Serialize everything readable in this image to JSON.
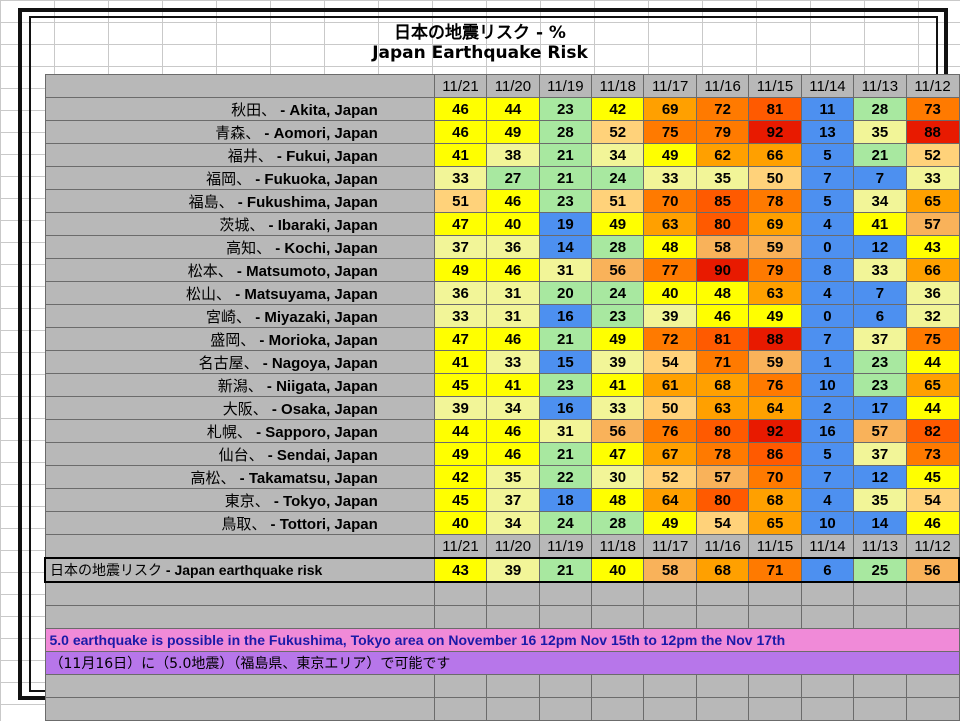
{
  "title_jp": "日本の地震リスク - %",
  "title_en": "Japan Earthquake Risk",
  "dates": [
    "11/21",
    "11/20",
    "11/19",
    "11/18",
    "11/17",
    "11/16",
    "11/15",
    "11/14",
    "11/13",
    "11/12"
  ],
  "rows": [
    {
      "jp": "秋田、",
      "en": " - Akita, Japan",
      "values": [
        46,
        44,
        23,
        42,
        69,
        72,
        81,
        11,
        28,
        73
      ]
    },
    {
      "jp": "青森、",
      "en": " - Aomori, Japan",
      "values": [
        46,
        49,
        28,
        52,
        75,
        79,
        92,
        13,
        35,
        88
      ]
    },
    {
      "jp": "福井、",
      "en": " - Fukui, Japan",
      "values": [
        41,
        38,
        21,
        34,
        49,
        62,
        66,
        5,
        21,
        52
      ]
    },
    {
      "jp": "福岡、",
      "en": " - Fukuoka, Japan",
      "values": [
        33,
        27,
        21,
        24,
        33,
        35,
        50,
        7,
        7,
        33
      ]
    },
    {
      "jp": "福島、",
      "en": " - Fukushima, Japan",
      "values": [
        51,
        46,
        23,
        51,
        70,
        85,
        78,
        5,
        34,
        65
      ]
    },
    {
      "jp": "茨城、",
      "en": " - Ibaraki, Japan",
      "values": [
        47,
        40,
        19,
        49,
        63,
        80,
        69,
        4,
        41,
        57
      ]
    },
    {
      "jp": "高知、",
      "en": " - Kochi, Japan",
      "values": [
        37,
        36,
        14,
        28,
        48,
        58,
        59,
        0,
        12,
        43
      ]
    },
    {
      "jp": "松本、",
      "en": " - Matsumoto, Japan",
      "values": [
        49,
        46,
        31,
        56,
        77,
        90,
        79,
        8,
        33,
        66
      ]
    },
    {
      "jp": "松山、",
      "en": " - Matsuyama, Japan",
      "values": [
        36,
        31,
        20,
        24,
        40,
        48,
        63,
        4,
        7,
        36
      ]
    },
    {
      "jp": "宮崎、",
      "en": " - Miyazaki, Japan",
      "values": [
        33,
        31,
        16,
        23,
        39,
        46,
        49,
        0,
        6,
        32
      ]
    },
    {
      "jp": "盛岡、",
      "en": " - Morioka, Japan",
      "values": [
        47,
        46,
        21,
        49,
        72,
        81,
        88,
        7,
        37,
        75
      ]
    },
    {
      "jp": "名古屋、",
      "en": " - Nagoya, Japan",
      "values": [
        41,
        33,
        15,
        39,
        54,
        71,
        59,
        1,
        23,
        44
      ]
    },
    {
      "jp": "新潟、",
      "en": " - Niigata, Japan",
      "values": [
        45,
        41,
        23,
        41,
        61,
        68,
        76,
        10,
        23,
        65
      ]
    },
    {
      "jp": "大阪、",
      "en": " - Osaka, Japan",
      "values": [
        39,
        34,
        16,
        33,
        50,
        63,
        64,
        2,
        17,
        44
      ]
    },
    {
      "jp": "札幌、",
      "en": " - Sapporo, Japan",
      "values": [
        44,
        46,
        31,
        56,
        76,
        80,
        92,
        16,
        57,
        82
      ]
    },
    {
      "jp": "仙台、",
      "en": " - Sendai, Japan",
      "values": [
        49,
        46,
        21,
        47,
        67,
        78,
        86,
        5,
        37,
        73
      ]
    },
    {
      "jp": "高松、",
      "en": " - Takamatsu, Japan",
      "values": [
        42,
        35,
        22,
        30,
        52,
        57,
        70,
        7,
        12,
        45
      ]
    },
    {
      "jp": "東京、",
      "en": " - Tokyo, Japan",
      "values": [
        45,
        37,
        18,
        48,
        64,
        80,
        68,
        4,
        35,
        54
      ]
    },
    {
      "jp": "鳥取、",
      "en": " - Tottori, Japan",
      "values": [
        40,
        34,
        24,
        28,
        49,
        54,
        65,
        10,
        14,
        46
      ]
    }
  ],
  "summary": {
    "jp": "日本の地震リスク",
    "en": " - Japan earthquake risk",
    "values": [
      43,
      39,
      21,
      40,
      58,
      68,
      71,
      6,
      25,
      56
    ]
  },
  "note_en": "5.0 earthquake is possible in the Fukushima, Tokyo area on November 16   12pm Nov 15th to 12pm the Nov 17th",
  "note_jp": "（11月16日）に（5.0地震）（福島県、東京エリア）で可能です",
  "colors": {
    "header_gray": "#b8b8b8",
    "note_pink": "#f08ad8",
    "note_violet": "#b776ea",
    "scale": [
      {
        "max": 19,
        "color": "#4d90f0"
      },
      {
        "max": 29,
        "color": "#a8e8a0"
      },
      {
        "max": 39,
        "color": "#f2f598"
      },
      {
        "max": 49,
        "color": "#ffff00"
      },
      {
        "max": 54,
        "color": "#ffd27a"
      },
      {
        "max": 59,
        "color": "#f9b25a"
      },
      {
        "max": 69,
        "color": "#ffa000"
      },
      {
        "max": 79,
        "color": "#ff7a00"
      },
      {
        "max": 87,
        "color": "#ff5a00"
      },
      {
        "max": 100,
        "color": "#e81a00"
      }
    ]
  }
}
